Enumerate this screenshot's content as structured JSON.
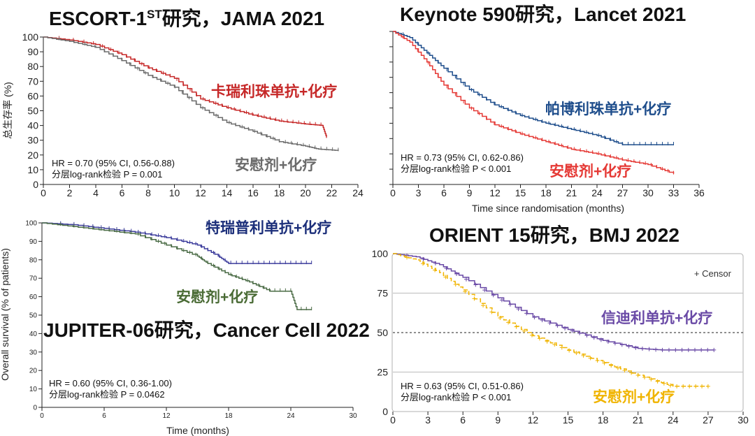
{
  "chart_data": [
    {
      "type": "line",
      "title": "ESCORT-1ST研究，JAMA 2021",
      "title_parts": {
        "pre": "ESCORT-1",
        "sup": "ST",
        "post": "研究，JAMA 2021"
      },
      "xlabel": "",
      "ylabel": "总生存率 (%)",
      "xlim": [
        0,
        24
      ],
      "ylim": [
        0,
        100
      ],
      "xticks": [
        0,
        2,
        4,
        6,
        8,
        10,
        12,
        14,
        16,
        18,
        20,
        22,
        24
      ],
      "yticks": [
        0,
        10,
        20,
        30,
        40,
        50,
        60,
        70,
        80,
        90,
        100
      ],
      "series": [
        {
          "name": "卡瑞利珠单抗+化疗",
          "color": "#c62828",
          "x": [
            0,
            2,
            4,
            6,
            8,
            10,
            12,
            14,
            16,
            18,
            20,
            21.3,
            21.6
          ],
          "y": [
            100,
            98,
            95,
            88,
            79,
            72,
            58,
            52,
            47,
            43,
            41,
            40,
            32
          ]
        },
        {
          "name": "安慰剂+化疗",
          "color": "#6b6b6b",
          "x": [
            0,
            2,
            4,
            6,
            8,
            10,
            12,
            14,
            16,
            18,
            20,
            21,
            22.5
          ],
          "y": [
            100,
            97,
            93,
            84,
            74,
            66,
            52,
            42,
            36,
            29,
            26,
            24,
            23
          ]
        }
      ],
      "annotations": [
        "HR = 0.70 (95% CI, 0.56-0.88)",
        "分层log-rank检验 P = 0.001"
      ]
    },
    {
      "type": "line",
      "title": "Keynote 590研究，Lancet 2021",
      "xlabel": "Time since randomisation (months)",
      "ylabel": "",
      "xlim": [
        0,
        36
      ],
      "ylim": [
        0,
        100
      ],
      "xticks": [
        0,
        3,
        6,
        9,
        12,
        15,
        18,
        21,
        24,
        27,
        30,
        33,
        36
      ],
      "yticks": [
        0,
        10,
        20,
        30,
        40,
        50,
        60,
        70,
        80,
        90,
        100
      ],
      "series": [
        {
          "name": "帕博利珠单抗+化疗",
          "color": "#1f4e8c",
          "x": [
            0,
            2,
            4,
            6,
            9,
            12,
            15,
            18,
            21,
            24,
            27,
            30,
            33
          ],
          "y": [
            100,
            96,
            86,
            76,
            62,
            52,
            45,
            40,
            36,
            32,
            26,
            26,
            26
          ]
        },
        {
          "name": "安慰剂+化疗",
          "color": "#e53935",
          "x": [
            0,
            2,
            4,
            6,
            9,
            12,
            15,
            18,
            21,
            24,
            27,
            30,
            33
          ],
          "y": [
            100,
            93,
            80,
            65,
            50,
            39,
            33,
            28,
            23,
            20,
            16,
            13,
            7
          ]
        }
      ],
      "annotations": [
        "HR = 0.73 (95% CI, 0.62-0.86)",
        "分层log-rank检验 P < 0.001"
      ]
    },
    {
      "type": "line",
      "title": "JUPITER-06研究，Cancer Cell 2022",
      "xlabel": "Time (months)",
      "ylabel": "Overall survival (% of patients)",
      "xlim": [
        0,
        30
      ],
      "ylim": [
        0,
        100
      ],
      "xticks": [
        0,
        6,
        12,
        18,
        24,
        30
      ],
      "yticks": [
        0,
        10,
        20,
        30,
        40,
        50,
        60,
        70,
        80,
        90,
        100
      ],
      "series": [
        {
          "name": "特瑞普利单抗+化疗",
          "color": "#3c3c9c",
          "x": [
            0,
            3,
            6,
            9,
            12,
            15,
            17,
            18,
            21,
            26
          ],
          "y": [
            100,
            99,
            97,
            95,
            92,
            88,
            82,
            78,
            78,
            78
          ]
        },
        {
          "name": "安慰剂+化疗",
          "color": "#4a6b45",
          "x": [
            0,
            3,
            6,
            9,
            12,
            15,
            16,
            18,
            20,
            22,
            24,
            24.6,
            26
          ],
          "y": [
            100,
            98,
            96,
            94,
            88,
            82,
            78,
            72,
            68,
            63,
            63,
            53,
            53
          ]
        }
      ],
      "annotations": [
        "HR = 0.60 (95% CI, 0.36-1.00)",
        "分层log-rank检验 P = 0.0462"
      ]
    },
    {
      "type": "line",
      "title": "ORIENT 15研究，BMJ 2022",
      "xlabel": "",
      "ylabel": "",
      "xlim": [
        0,
        30
      ],
      "ylim": [
        0,
        100
      ],
      "xticks": [
        0,
        3,
        6,
        9,
        12,
        15,
        18,
        21,
        24,
        27,
        30
      ],
      "yticks": [
        0,
        25,
        50,
        75,
        100
      ],
      "reference_line": 50,
      "legend": "+ Censor",
      "series": [
        {
          "name": "信迪利单抗+化疗",
          "color": "#6a4aa6",
          "x": [
            0,
            2,
            4,
            6,
            9,
            12,
            15,
            18,
            21,
            23,
            27.5
          ],
          "y": [
            100,
            98,
            93,
            85,
            72,
            60,
            52,
            45,
            40,
            39,
            39
          ]
        },
        {
          "name": "安慰剂+化疗",
          "color": "#f0b400",
          "x": [
            0,
            2,
            4,
            6,
            9,
            12,
            15,
            18,
            21,
            24,
            27
          ],
          "y": [
            100,
            96,
            88,
            77,
            60,
            48,
            39,
            31,
            23,
            16,
            16
          ]
        }
      ],
      "annotations": [
        "HR = 0.63 (95% CI, 0.51-0.86)",
        "分层log-rank检验 P < 0.001"
      ]
    }
  ]
}
